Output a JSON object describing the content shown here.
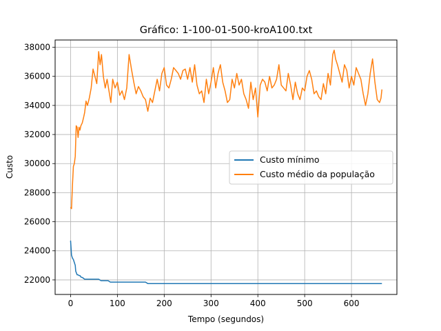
{
  "chart_data": {
    "type": "line",
    "title": "Gráfico: 1-100-01-500-kroA100.txt",
    "xlabel": "Tempo (segundos)",
    "ylabel": "Custo",
    "xlim": [
      -33,
      697
    ],
    "ylim": [
      21000,
      38500
    ],
    "x_ticks": [
      0,
      100,
      200,
      300,
      400,
      500,
      600
    ],
    "x_tick_labels": [
      "0",
      "100",
      "200",
      "300",
      "400",
      "500",
      "600"
    ],
    "y_ticks": [
      22000,
      24000,
      26000,
      28000,
      30000,
      32000,
      34000,
      36000,
      38000
    ],
    "y_tick_labels": [
      "22000",
      "24000",
      "26000",
      "28000",
      "30000",
      "32000",
      "34000",
      "36000",
      "38000"
    ],
    "grid": true,
    "legend_position": "center-right",
    "series": [
      {
        "name": "Custo mínimo",
        "color": "#1f77b4",
        "x": [
          0,
          2,
          3,
          4,
          6,
          8,
          10,
          11,
          14,
          16,
          18,
          20,
          22,
          26,
          30,
          36,
          40,
          60,
          65,
          80,
          85,
          100,
          120,
          140,
          160,
          165,
          200,
          300,
          400,
          500,
          600,
          665
        ],
        "y": [
          24700,
          23700,
          23600,
          23500,
          23400,
          23200,
          23000,
          22600,
          22350,
          22350,
          22300,
          22300,
          22200,
          22150,
          22050,
          22050,
          22050,
          22050,
          21950,
          21950,
          21850,
          21850,
          21850,
          21850,
          21850,
          21750,
          21750,
          21750,
          21750,
          21750,
          21750,
          21750
        ]
      },
      {
        "name": "Custo médio da população",
        "color": "#ff7f0e",
        "x": [
          0,
          2,
          4,
          6,
          8,
          10,
          12,
          14,
          16,
          18,
          20,
          22,
          25,
          28,
          30,
          33,
          36,
          40,
          44,
          48,
          52,
          56,
          60,
          63,
          66,
          70,
          74,
          78,
          82,
          86,
          90,
          95,
          100,
          105,
          110,
          115,
          120,
          125,
          130,
          135,
          140,
          145,
          150,
          155,
          160,
          165,
          170,
          175,
          180,
          185,
          190,
          195,
          200,
          205,
          210,
          215,
          220,
          225,
          230,
          235,
          240,
          245,
          250,
          255,
          260,
          265,
          270,
          275,
          280,
          285,
          290,
          295,
          300,
          305,
          310,
          315,
          320,
          325,
          330,
          335,
          340,
          345,
          350,
          355,
          360,
          365,
          370,
          375,
          380,
          385,
          390,
          395,
          400,
          405,
          410,
          415,
          420,
          425,
          430,
          435,
          440,
          445,
          450,
          455,
          460,
          465,
          470,
          475,
          480,
          485,
          490,
          495,
          500,
          505,
          510,
          515,
          520,
          525,
          530,
          535,
          540,
          545,
          550,
          555,
          560,
          563,
          566,
          570,
          575,
          580,
          585,
          590,
          595,
          600,
          605,
          610,
          615,
          620,
          625,
          630,
          635,
          640,
          645,
          650,
          655,
          660,
          663,
          665
        ],
        "y": [
          27000,
          26900,
          28500,
          29800,
          30000,
          30500,
          32600,
          32500,
          31800,
          32500,
          32300,
          32600,
          32800,
          33200,
          33500,
          34300,
          34000,
          34500,
          35200,
          36500,
          36000,
          35500,
          37700,
          36800,
          37500,
          36000,
          35200,
          35800,
          35000,
          34200,
          35800,
          35200,
          35600,
          34700,
          35000,
          34400,
          35200,
          37500,
          36500,
          35600,
          34800,
          35300,
          35000,
          34600,
          34400,
          33600,
          34500,
          34200,
          35000,
          35800,
          35000,
          36200,
          36600,
          35400,
          35200,
          35800,
          36600,
          36400,
          36200,
          35800,
          36400,
          36500,
          35800,
          36600,
          35600,
          36800,
          35400,
          34800,
          35000,
          34200,
          35800,
          34800,
          35600,
          36600,
          35200,
          36200,
          36800,
          35600,
          35000,
          34200,
          34400,
          35800,
          35200,
          36200,
          35400,
          35800,
          34800,
          34400,
          33800,
          35600,
          34400,
          35200,
          33200,
          35400,
          35800,
          35600,
          35000,
          36000,
          35200,
          35400,
          35800,
          36800,
          35400,
          35200,
          35000,
          36200,
          35400,
          34400,
          35600,
          34800,
          34400,
          35200,
          35000,
          36000,
          36400,
          35800,
          34800,
          35000,
          34600,
          34400,
          35500,
          34800,
          36200,
          35400,
          37500,
          37800,
          37200,
          36800,
          36200,
          35600,
          36800,
          36400,
          35200,
          36000,
          35400,
          36600,
          36200,
          35800,
          34800,
          34000,
          34800,
          36200,
          37200,
          35600,
          34400,
          34200,
          34500,
          35100
        ]
      }
    ]
  }
}
